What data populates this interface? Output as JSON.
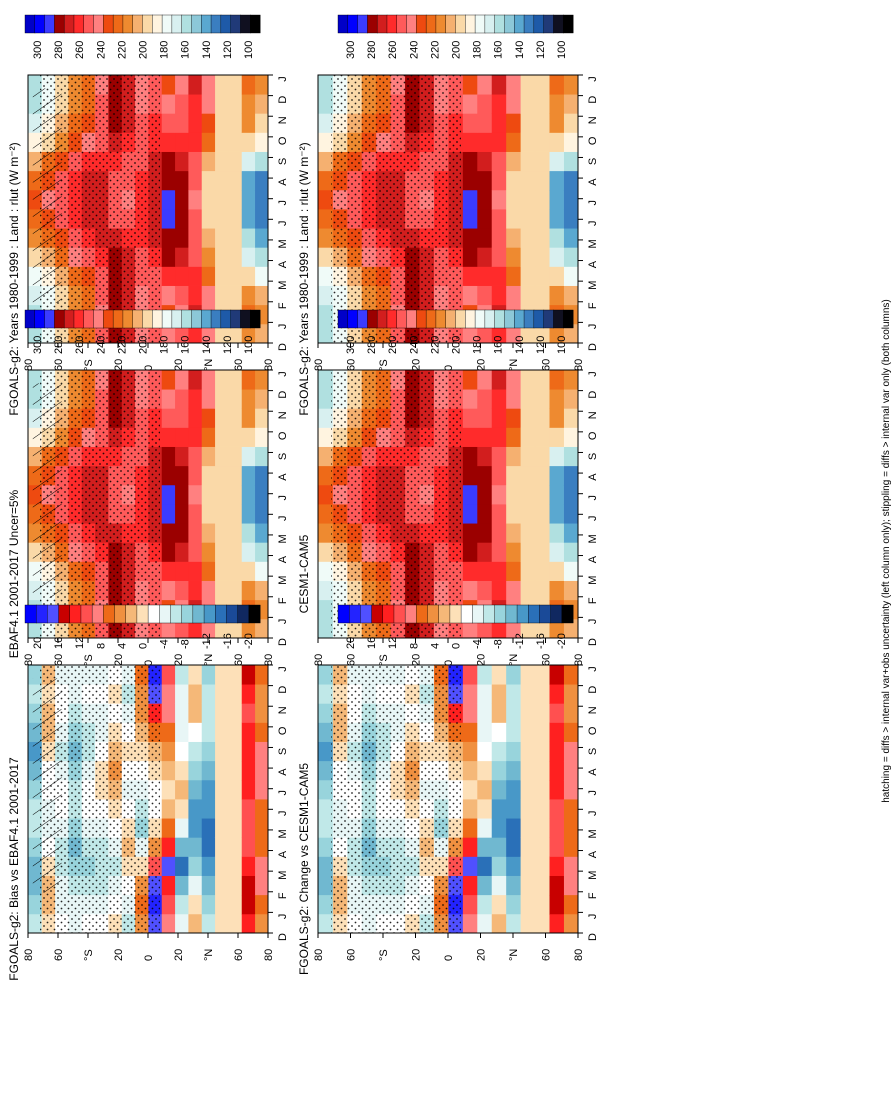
{
  "footer_note": "hatching = diffs > internal var+obs uncertainty (left column only); stippling = diffs > internal var only (both columns)",
  "colorbars": {
    "abs": {
      "labels": [
        "300",
        "280",
        "260",
        "240",
        "220",
        "200",
        "180",
        "160",
        "140",
        "120",
        "100"
      ],
      "colors": [
        "#0000c8",
        "#0000ff",
        "#3b3bff",
        "#9b0000",
        "#d21e1e",
        "#ff2b2b",
        "#ff5a5a",
        "#ff8080",
        "#ee4a10",
        "#ee6a18",
        "#ee8a30",
        "#f5b070",
        "#fad9a8",
        "#fff4e0",
        "#f0fbf8",
        "#d8f0f0",
        "#b0e0e0",
        "#8cc8d8",
        "#5aa8d0",
        "#3a7ec0",
        "#1e5aa8",
        "#203a78",
        "#101020",
        "#000000"
      ]
    },
    "diff": {
      "labels": [
        "20",
        "16",
        "12",
        "8",
        "4",
        "0",
        "-4",
        "-8",
        "-12",
        "-16",
        "-20"
      ],
      "colors": [
        "#0000ff",
        "#2323ff",
        "#5050ff",
        "#c80000",
        "#ff2020",
        "#ff5050",
        "#ff8080",
        "#ee6a18",
        "#f09040",
        "#f5b878",
        "#fde0b8",
        "#ffffff",
        "#e8f6f6",
        "#c0e8e8",
        "#98d4dc",
        "#70b8d0",
        "#4898c8",
        "#2a70b8",
        "#1a4a98",
        "#102860",
        "#000000"
      ]
    }
  },
  "panels": [
    {
      "title": "FGOALS-g2: Years 1980-1999 : Land : rlut (W m⁻²)",
      "kind": "abs",
      "hatch": true
    },
    {
      "title": "EBAF4.1 2001-2017 Uncer=5%",
      "kind": "abs",
      "hatch": true
    },
    {
      "title": "FGOALS-g2: Bias vs EBAF4.1 2001-2017",
      "kind": "diff",
      "hatch": true
    },
    {
      "title": "FGOALS-g2: Years 1980-1999 : Land : rlut (W m⁻²)",
      "kind": "abs",
      "hatch": false
    },
    {
      "title": "CESM1-CAM5",
      "kind": "abs",
      "hatch": false
    },
    {
      "title": "FGOALS-g2: Change vs CESM1-CAM5",
      "kind": "diff",
      "hatch": false
    }
  ],
  "chart_data": {
    "type": "heatmap",
    "variable": "rlut (W m-2)",
    "x_axis": {
      "label": "month",
      "ticks": [
        "D",
        "J",
        "F",
        "M",
        "A",
        "M",
        "J",
        "J",
        "A",
        "S",
        "O",
        "N",
        "D",
        "J"
      ]
    },
    "y_axis": {
      "label": "latitude",
      "ticks": [
        "80",
        "60",
        "°N",
        "20",
        "0",
        "20",
        "°S",
        "60",
        "80"
      ],
      "range": [
        -90,
        90
      ]
    },
    "fields": {
      "abs": {
        "lat": [
          -85,
          -75,
          -65,
          -55,
          -45,
          -35,
          -25,
          -15,
          -5,
          5,
          15,
          25,
          35,
          45,
          55,
          65,
          75,
          85
        ],
        "months": [
          "D",
          "J",
          "F",
          "M",
          "A",
          "M",
          "J",
          "J",
          "A",
          "S",
          "O",
          "N",
          "D",
          "J"
        ],
        "values": [
          [
            205,
            210,
            205,
            180,
            165,
            150,
            140,
            135,
            140,
            160,
            185,
            200,
            205,
            210
          ],
          [
            215,
            218,
            212,
            195,
            175,
            160,
            150,
            145,
            150,
            170,
            195,
            210,
            215,
            218
          ],
          [
            200,
            200,
            200,
            200,
            200,
            200,
            200,
            200,
            200,
            200,
            200,
            200,
            200,
            200
          ],
          [
            200,
            200,
            200,
            200,
            200,
            200,
            200,
            200,
            200,
            200,
            200,
            200,
            200,
            200
          ],
          [
            235,
            238,
            235,
            225,
            215,
            205,
            200,
            198,
            200,
            208,
            220,
            232,
            235,
            238
          ],
          [
            255,
            260,
            258,
            255,
            250,
            245,
            242,
            240,
            242,
            248,
            252,
            255,
            255,
            260
          ],
          [
            245,
            240,
            242,
            255,
            265,
            268,
            270,
            270,
            268,
            265,
            258,
            250,
            245,
            240
          ],
          [
            235,
            230,
            235,
            255,
            268,
            275,
            280,
            278,
            275,
            270,
            258,
            245,
            235,
            230
          ],
          [
            250,
            245,
            245,
            250,
            255,
            260,
            262,
            262,
            262,
            260,
            255,
            252,
            250,
            245
          ],
          [
            240,
            235,
            238,
            245,
            250,
            255,
            258,
            258,
            255,
            250,
            245,
            242,
            240,
            235
          ],
          [
            265,
            262,
            262,
            265,
            262,
            255,
            245,
            240,
            242,
            250,
            258,
            262,
            265,
            262
          ],
          [
            275,
            272,
            272,
            272,
            268,
            260,
            250,
            245,
            248,
            255,
            265,
            272,
            275,
            272
          ],
          [
            245,
            240,
            242,
            250,
            258,
            262,
            262,
            262,
            260,
            255,
            250,
            245,
            245,
            240
          ],
          [
            225,
            220,
            222,
            232,
            245,
            255,
            260,
            262,
            260,
            252,
            240,
            230,
            225,
            220
          ],
          [
            215,
            212,
            215,
            222,
            235,
            245,
            255,
            258,
            255,
            245,
            230,
            220,
            215,
            212
          ],
          [
            200,
            198,
            200,
            208,
            220,
            232,
            242,
            245,
            242,
            232,
            215,
            205,
            200,
            198
          ],
          [
            180,
            178,
            182,
            190,
            205,
            220,
            232,
            235,
            230,
            218,
            200,
            188,
            180,
            178
          ],
          [
            165,
            162,
            168,
            178,
            195,
            212,
            225,
            228,
            222,
            208,
            188,
            172,
            165,
            162
          ]
        ]
      },
      "diff": {
        "lat": [
          -85,
          -75,
          -65,
          -55,
          -45,
          -35,
          -25,
          -15,
          -5,
          5,
          15,
          25,
          35,
          45,
          55,
          65,
          75,
          85
        ],
        "months": [
          "D",
          "J",
          "F",
          "M",
          "A",
          "M",
          "J",
          "J",
          "A",
          "S",
          "O",
          "N",
          "D",
          "J"
        ],
        "values": [
          [
            4,
            6,
            8,
            8,
            6,
            6,
            6,
            8,
            8,
            8,
            6,
            4,
            4,
            6
          ],
          [
            12,
            14,
            14,
            12,
            10,
            10,
            10,
            12,
            12,
            12,
            12,
            10,
            12,
            14
          ],
          [
            0,
            0,
            0,
            0,
            0,
            0,
            0,
            0,
            0,
            0,
            0,
            0,
            0,
            0
          ],
          [
            0,
            0,
            0,
            0,
            0,
            0,
            0,
            0,
            0,
            0,
            0,
            0,
            0,
            0
          ],
          [
            -6,
            -8,
            -10,
            -12,
            -14,
            -14,
            -12,
            -12,
            -10,
            -8,
            -6,
            -6,
            -6,
            -8
          ],
          [
            2,
            0,
            -4,
            -8,
            -10,
            -12,
            -12,
            -10,
            -8,
            -6,
            -2,
            2,
            2,
            0
          ],
          [
            -4,
            -6,
            -10,
            -14,
            -10,
            -4,
            0,
            2,
            0,
            -2,
            -4,
            -4,
            -4,
            -6
          ],
          [
            8,
            10,
            12,
            16,
            12,
            6,
            2,
            0,
            2,
            4,
            6,
            8,
            8,
            10
          ],
          [
            16,
            18,
            16,
            10,
            4,
            0,
            -2,
            -2,
            0,
            2,
            6,
            12,
            16,
            18
          ],
          [
            4,
            6,
            4,
            0,
            -4,
            -8,
            -6,
            -4,
            -2,
            0,
            2,
            4,
            4,
            6
          ],
          [
            -6,
            -4,
            -2,
            0,
            2,
            0,
            -2,
            -4,
            -2,
            0,
            -2,
            -4,
            -6,
            -4
          ],
          [
            0,
            -2,
            -4,
            -6,
            -4,
            -2,
            0,
            2,
            4,
            2,
            0,
            -2,
            0,
            -2
          ],
          [
            -2,
            -4,
            -6,
            -6,
            -6,
            -4,
            -2,
            0,
            0,
            -2,
            -4,
            -4,
            -2,
            -4
          ],
          [
            -2,
            -4,
            -6,
            -8,
            -6,
            -4,
            -2,
            -2,
            -4,
            -6,
            -6,
            -4,
            -2,
            -4
          ],
          [
            -4,
            -4,
            -6,
            -8,
            -10,
            -8,
            -6,
            -6,
            -8,
            -10,
            -8,
            -6,
            -4,
            -4
          ],
          [
            -2,
            -4,
            -4,
            -6,
            -6,
            -4,
            -2,
            -2,
            -4,
            -6,
            -4,
            -2,
            -2,
            -4
          ],
          [
            0,
            2,
            2,
            0,
            -2,
            -4,
            -4,
            -2,
            -2,
            0,
            2,
            2,
            0,
            2
          ],
          [
            -6,
            -8,
            -10,
            -10,
            -8,
            -6,
            -6,
            -8,
            -10,
            -12,
            -10,
            -8,
            -6,
            -8
          ]
        ]
      }
    }
  }
}
